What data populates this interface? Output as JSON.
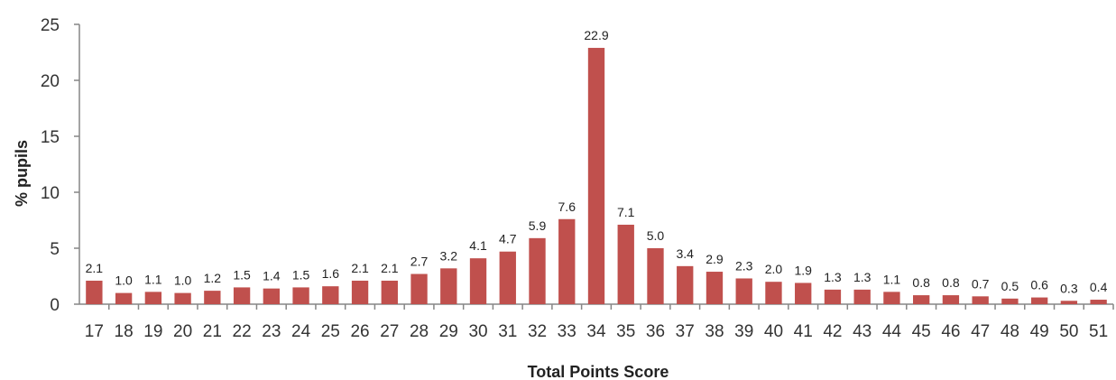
{
  "chart_data": {
    "type": "bar",
    "title": "",
    "xlabel": "Total Points Score",
    "ylabel": "% pupils",
    "categories": [
      "17",
      "18",
      "19",
      "20",
      "21",
      "22",
      "23",
      "24",
      "25",
      "26",
      "27",
      "28",
      "29",
      "30",
      "31",
      "32",
      "33",
      "34",
      "35",
      "36",
      "37",
      "38",
      "39",
      "40",
      "41",
      "42",
      "43",
      "44",
      "45",
      "46",
      "47",
      "48",
      "49",
      "50",
      "51"
    ],
    "values": [
      2.1,
      1.0,
      1.1,
      1.0,
      1.2,
      1.5,
      1.4,
      1.5,
      1.6,
      2.1,
      2.1,
      2.7,
      3.2,
      4.1,
      4.7,
      5.9,
      7.6,
      22.9,
      7.1,
      5.0,
      3.4,
      2.9,
      2.3,
      2.0,
      1.9,
      1.3,
      1.3,
      1.1,
      0.8,
      0.8,
      0.7,
      0.5,
      0.6,
      0.3,
      0.4
    ],
    "value_labels": [
      "2.1",
      "1.0",
      "1.1",
      "1.0",
      "1.2",
      "1.5",
      "1.4",
      "1.5",
      "1.6",
      "2.1",
      "2.1",
      "2.7",
      "3.2",
      "4.1",
      "4.7",
      "5.9",
      "7.6",
      "22.9",
      "7.1",
      "5.0",
      "3.4",
      "2.9",
      "2.3",
      "2.0",
      "1.9",
      "1.3",
      "1.3",
      "1.1",
      "0.8",
      "0.8",
      "0.7",
      "0.5",
      "0.6",
      "0.3",
      "0.4"
    ],
    "ylim": [
      0,
      25
    ],
    "yticks": [
      0,
      5,
      10,
      15,
      20,
      25
    ],
    "grid": false,
    "legend": "none",
    "bar_color": "#c0504d",
    "axis_color": "#868686"
  }
}
